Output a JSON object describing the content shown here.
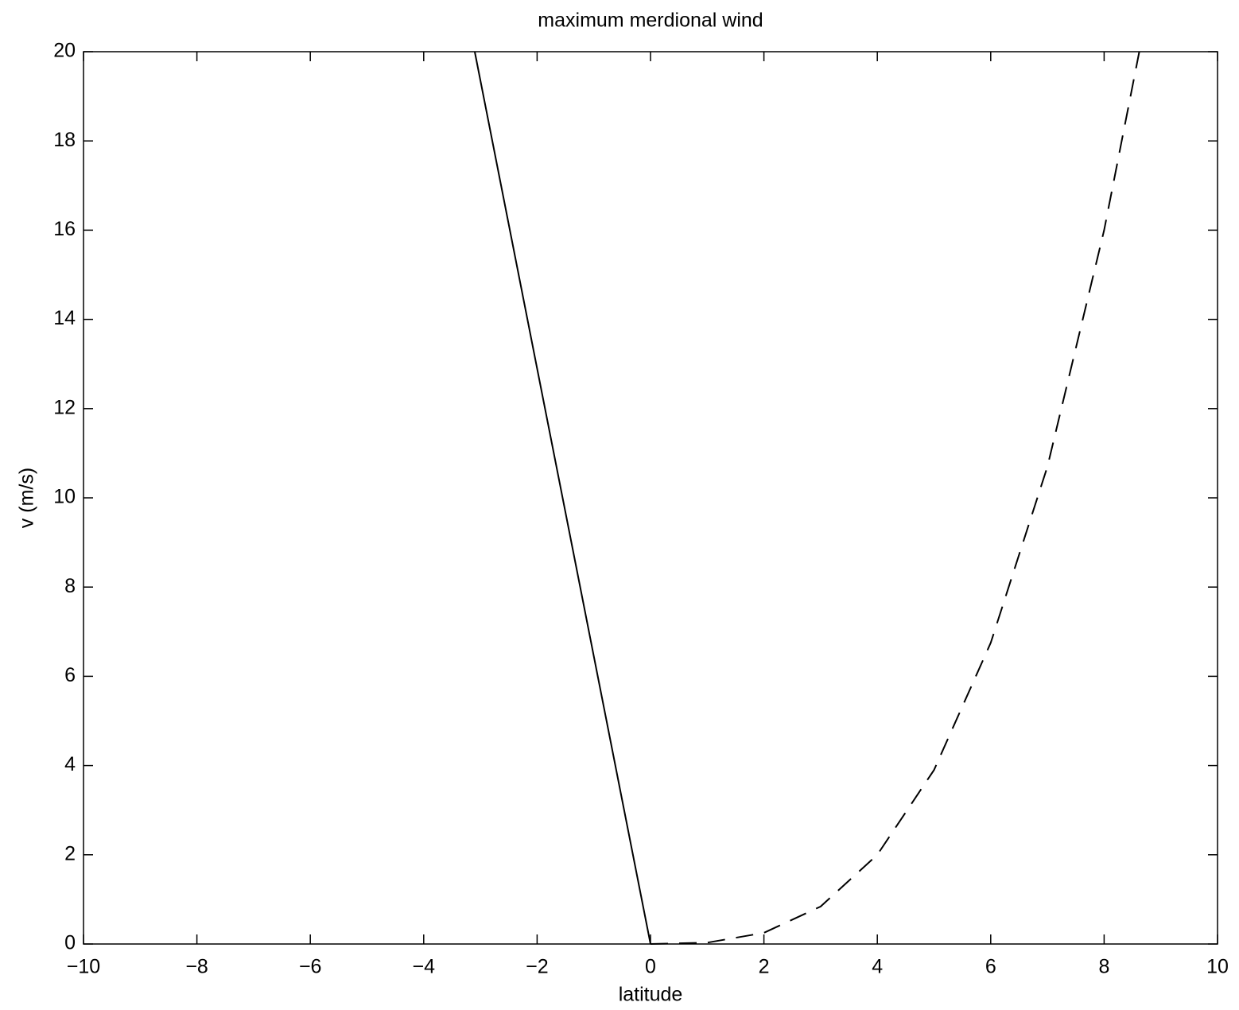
{
  "chart_data": {
    "type": "line",
    "title": "maximum merdional wind",
    "x_label": "latitude",
    "y_label": "v (m/s)",
    "x": [
      -10,
      -3.1,
      -2,
      -1,
      0,
      1,
      2,
      3,
      4,
      5,
      6,
      7,
      8,
      8.62
    ],
    "series": [
      {
        "color": "#000000",
        "style": "solid",
        "values": [
          null,
          20,
          12.9,
          6.45,
          0,
          null,
          null,
          null,
          null,
          null,
          null,
          null,
          null,
          null
        ]
      },
      {
        "color": "#000000",
        "style": "dashed",
        "values": [
          null,
          null,
          null,
          null,
          0,
          0.03,
          0.25,
          0.84,
          2,
          3.9,
          6.75,
          10.7,
          16,
          20
        ]
      }
    ],
    "xlim": [
      -10,
      10
    ],
    "ylim": [
      0,
      20
    ],
    "xticks": [
      {
        "value": -10,
        "label": "−10"
      },
      {
        "value": -8,
        "label": "−8"
      },
      {
        "value": -6,
        "label": "−6"
      },
      {
        "value": -4,
        "label": "−4"
      },
      {
        "value": -2,
        "label": "−2"
      },
      0,
      2,
      4,
      6,
      8,
      10
    ],
    "yticks": [
      0,
      2,
      4,
      6,
      8,
      10,
      12,
      14,
      16,
      18,
      20
    ]
  }
}
